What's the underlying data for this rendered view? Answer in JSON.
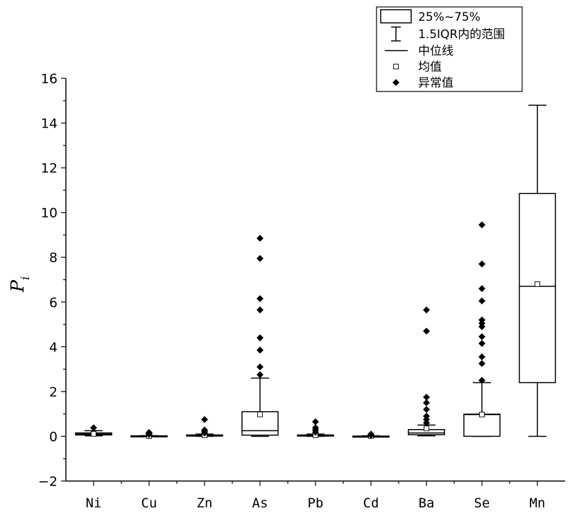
{
  "chart_data": {
    "type": "box",
    "ylabel": "P",
    "ylabel_sub": "i",
    "ylim": [
      -2,
      16
    ],
    "yticks": [
      -2,
      0,
      2,
      4,
      6,
      8,
      10,
      12,
      14,
      16
    ],
    "ytick_labels": [
      "−2",
      "0",
      "2",
      "4",
      "6",
      "8",
      "10",
      "12",
      "14",
      "16"
    ],
    "grid": false,
    "legend_position": "top-right",
    "legend": {
      "box": "25%~75%",
      "whisker": "1.5IQR内的范围",
      "median": "中位线",
      "mean": "均值",
      "outlier": "异常值"
    },
    "categories": [
      "Ni",
      "Cu",
      "Zn",
      "As",
      "Pb",
      "Cd",
      "Ba",
      "Se",
      "Mn"
    ],
    "boxes": [
      {
        "name": "Ni",
        "q1": 0.06,
        "median": 0.1,
        "q3": 0.15,
        "whisker_low": 0.02,
        "whisker_high": 0.25,
        "mean": 0.11,
        "outliers": [
          0.38
        ]
      },
      {
        "name": "Cu",
        "q1": 0.0,
        "median": 0.0,
        "q3": 0.02,
        "whisker_low": 0.0,
        "whisker_high": 0.03,
        "mean": 0.01,
        "outliers": [
          0.08,
          0.13,
          0.17
        ]
      },
      {
        "name": "Zn",
        "q1": 0.01,
        "median": 0.03,
        "q3": 0.06,
        "whisker_low": 0.0,
        "whisker_high": 0.1,
        "mean": 0.05,
        "outliers": [
          0.15,
          0.22,
          0.28,
          0.75
        ]
      },
      {
        "name": "As",
        "q1": 0.05,
        "median": 0.25,
        "q3": 1.1,
        "whisker_low": 0.0,
        "whisker_high": 2.6,
        "mean": 0.98,
        "outliers": [
          2.75,
          3.1,
          3.85,
          4.4,
          5.65,
          6.15,
          7.95,
          8.85
        ]
      },
      {
        "name": "Pb",
        "q1": 0.01,
        "median": 0.03,
        "q3": 0.06,
        "whisker_low": 0.0,
        "whisker_high": 0.1,
        "mean": 0.05,
        "outliers": [
          0.18,
          0.28,
          0.38,
          0.65
        ]
      },
      {
        "name": "Cd",
        "q1": 0.0,
        "median": 0.0,
        "q3": 0.01,
        "whisker_low": 0.0,
        "whisker_high": 0.02,
        "mean": 0.01,
        "outliers": [
          0.05,
          0.1
        ]
      },
      {
        "name": "Ba",
        "q1": 0.07,
        "median": 0.15,
        "q3": 0.3,
        "whisker_low": 0.02,
        "whisker_high": 0.5,
        "mean": 0.35,
        "outliers": [
          0.6,
          0.75,
          0.9,
          1.2,
          1.5,
          1.75,
          4.7,
          5.65
        ]
      },
      {
        "name": "Se",
        "q1": 0.0,
        "median": 0.97,
        "q3": 0.99,
        "whisker_low": 0.0,
        "whisker_high": 2.4,
        "mean": 0.97,
        "outliers": [
          2.5,
          3.25,
          3.55,
          4.15,
          4.45,
          4.9,
          5.05,
          5.2,
          6.05,
          6.6,
          7.7,
          9.45
        ]
      },
      {
        "name": "Mn",
        "q1": 2.4,
        "median": 6.7,
        "q3": 10.85,
        "whisker_low": 0.0,
        "whisker_high": 14.8,
        "mean": 6.8,
        "outliers": []
      }
    ]
  }
}
